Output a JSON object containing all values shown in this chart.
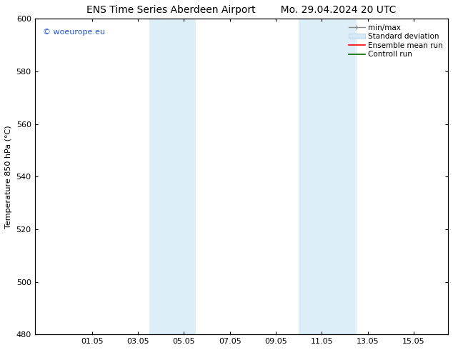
{
  "title_left": "ENS Time Series Aberdeen Airport",
  "title_right": "Mo. 29.04.2024 20 UTC",
  "ylabel": "Temperature 850 hPa (°C)",
  "ylim": [
    480,
    600
  ],
  "yticks": [
    480,
    500,
    520,
    540,
    560,
    580,
    600
  ],
  "xtick_labels": [
    "01.05",
    "03.05",
    "05.05",
    "07.05",
    "09.05",
    "11.05",
    "13.05",
    "15.05"
  ],
  "xtick_positions": [
    2,
    4,
    6,
    8,
    10,
    12,
    14,
    16
  ],
  "xlim": [
    -0.5,
    17.5
  ],
  "shaded_bands": [
    {
      "x_start": 4.5,
      "x_end": 5.5,
      "color": "#ddeef8"
    },
    {
      "x_start": 5.5,
      "x_end": 6.5,
      "color": "#ddeef8"
    },
    {
      "x_start": 11.0,
      "x_end": 12.0,
      "color": "#ddeef8"
    },
    {
      "x_start": 12.0,
      "x_end": 13.5,
      "color": "#ddeef8"
    }
  ],
  "watermark": "© woeurope.eu",
  "watermark_color": "#2255cc",
  "bg_color": "#ffffff",
  "plot_bg_color": "#ffffff",
  "title_fontsize": 10,
  "tick_fontsize": 8,
  "ylabel_fontsize": 8,
  "legend_fontsize": 7.5
}
